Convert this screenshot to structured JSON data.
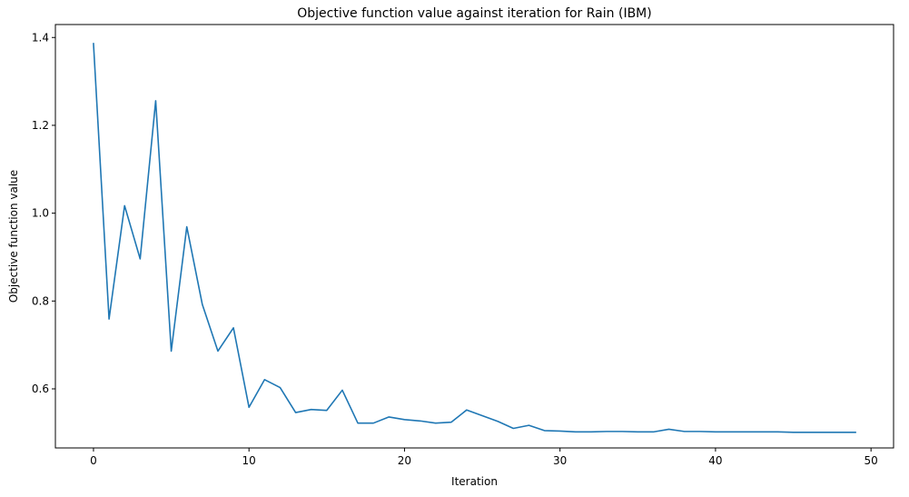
{
  "chart_data": {
    "type": "line",
    "title": "Objective function value against iteration for Rain (IBM)",
    "xlabel": "Iteration",
    "ylabel": "Objective function value",
    "xlim": [
      -2.45,
      51.45
    ],
    "ylim": [
      0.4655,
      1.4295
    ],
    "grid": false,
    "xticks": [
      0,
      10,
      20,
      30,
      40,
      50
    ],
    "xtick_labels": [
      "0",
      "10",
      "20",
      "30",
      "40",
      "50"
    ],
    "yticks": [
      0.6,
      0.8,
      1.0,
      1.2,
      1.4
    ],
    "ytick_labels": [
      "0.6",
      "0.8",
      "1.0",
      "1.2",
      "1.4"
    ],
    "series": [
      {
        "name": "Objective function value",
        "color": "#1f77b4",
        "x": [
          0,
          1,
          2,
          3,
          4,
          5,
          6,
          7,
          8,
          9,
          10,
          11,
          12,
          13,
          14,
          15,
          16,
          17,
          18,
          19,
          20,
          21,
          22,
          23,
          24,
          25,
          26,
          27,
          28,
          29,
          30,
          31,
          32,
          33,
          34,
          35,
          36,
          37,
          38,
          39,
          40,
          41,
          42,
          43,
          44,
          45,
          46,
          47,
          48,
          49
        ],
        "values": [
          1.386,
          0.759,
          1.017,
          0.896,
          1.256,
          0.686,
          0.969,
          0.792,
          0.686,
          0.739,
          0.558,
          0.621,
          0.603,
          0.546,
          0.553,
          0.551,
          0.597,
          0.522,
          0.522,
          0.536,
          0.53,
          0.527,
          0.522,
          0.524,
          0.552,
          0.539,
          0.526,
          0.51,
          0.517,
          0.505,
          0.504,
          0.502,
          0.502,
          0.503,
          0.503,
          0.502,
          0.502,
          0.508,
          0.503,
          0.503,
          0.502,
          0.502,
          0.502,
          0.502,
          0.502,
          0.501,
          0.501,
          0.501,
          0.501,
          0.501
        ]
      }
    ]
  }
}
